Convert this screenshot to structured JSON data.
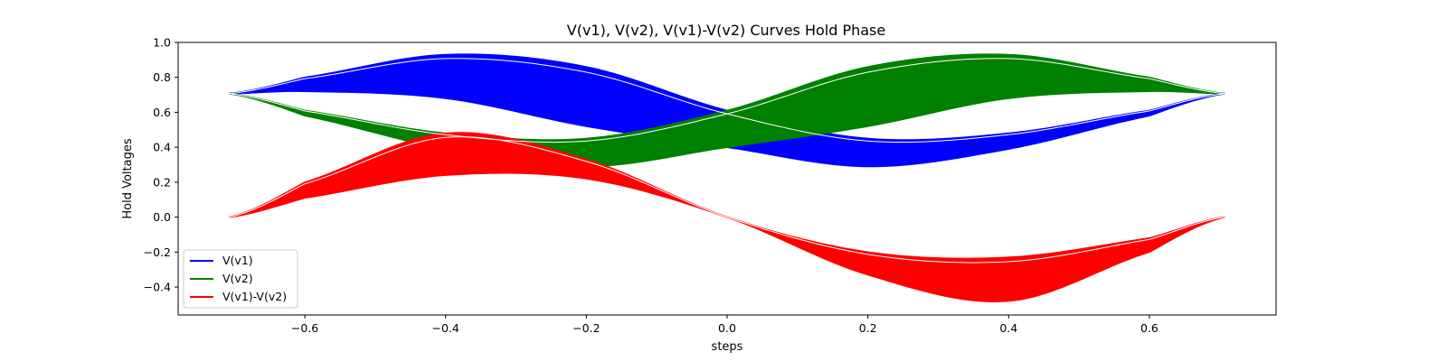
{
  "chart_data": {
    "type": "line",
    "title": "V(v1), V(v2), V(v1)-V(v2) Curves Hold Phase",
    "xlabel": "steps",
    "ylabel": "Hold Voltages",
    "xlim": [
      -0.78,
      0.78
    ],
    "ylim": [
      -0.56,
      1.0
    ],
    "x_ticks": [
      -0.6,
      -0.4,
      -0.2,
      0.0,
      0.2,
      0.4,
      0.6
    ],
    "x_tick_labels": [
      "−0.6",
      "−0.4",
      "−0.2",
      "0.0",
      "0.2",
      "0.4",
      "0.6"
    ],
    "y_ticks": [
      -0.4,
      -0.2,
      0.0,
      0.2,
      0.4,
      0.6,
      0.8,
      1.0
    ],
    "y_tick_labels": [
      "−0.4",
      "−0.2",
      "0.0",
      "0.2",
      "0.4",
      "0.6",
      "0.8",
      "1.0"
    ],
    "grid": false,
    "legend": {
      "position": "lower-left",
      "entries": [
        {
          "label": "V(v1)",
          "color": "#0000ff"
        },
        {
          "label": "V(v2)",
          "color": "#008000"
        },
        {
          "label": "V(v1)-V(v2)",
          "color": "#ff0000"
        }
      ]
    },
    "x_domain": [
      -0.707,
      0.707
    ],
    "series": [
      {
        "name": "V(v1)",
        "color": "#0000ff",
        "band": true,
        "x": [
          -0.707,
          -0.6,
          -0.4,
          -0.2,
          0.0,
          0.2,
          0.4,
          0.6,
          0.707
        ],
        "upper": [
          0.707,
          0.8,
          0.93,
          0.86,
          0.61,
          0.45,
          0.48,
          0.61,
          0.707
        ],
        "lower": [
          0.707,
          0.72,
          0.68,
          0.52,
          0.4,
          0.29,
          0.39,
          0.58,
          0.707
        ]
      },
      {
        "name": "V(v2)",
        "color": "#008000",
        "band": true,
        "x": [
          -0.707,
          -0.6,
          -0.4,
          -0.2,
          0.0,
          0.2,
          0.4,
          0.6,
          0.707
        ],
        "upper": [
          0.707,
          0.61,
          0.48,
          0.45,
          0.61,
          0.86,
          0.93,
          0.8,
          0.707
        ],
        "lower": [
          0.707,
          0.58,
          0.39,
          0.29,
          0.4,
          0.52,
          0.68,
          0.72,
          0.707
        ]
      },
      {
        "name": "V(v1)-V(v2)",
        "color": "#ff0000",
        "band": true,
        "x": [
          -0.707,
          -0.6,
          -0.4,
          -0.2,
          0.0,
          0.2,
          0.4,
          0.6,
          0.707
        ],
        "upper": [
          0.0,
          0.2,
          0.48,
          0.33,
          0.0,
          -0.2,
          -0.23,
          -0.12,
          0.0
        ],
        "lower": [
          0.0,
          0.11,
          0.24,
          0.22,
          0.0,
          -0.33,
          -0.48,
          -0.2,
          0.0
        ]
      }
    ]
  }
}
